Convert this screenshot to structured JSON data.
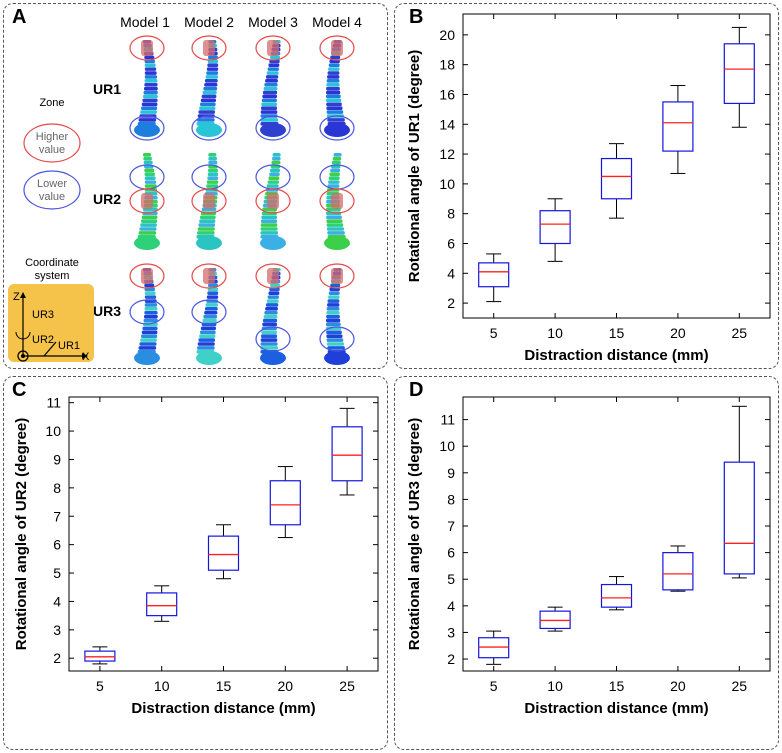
{
  "panel_a": {
    "label": "A",
    "models": [
      "Model 1",
      "Model 2",
      "Model 3",
      "Model 4"
    ],
    "rows": [
      "UR1",
      "UR2",
      "UR3"
    ],
    "zone_title": "Zone",
    "higher_label": "Higher value",
    "lower_label": "Lower value",
    "coord_title": "Coordinate system",
    "axis_z": "Z",
    "axis_x": "X",
    "ur1": "UR1",
    "ur2": "UR2",
    "ur3": "UR3",
    "colors": {
      "higher": "#e84a4a",
      "lower": "#4a56e0",
      "coord_bg": "#f5c24a"
    }
  },
  "chart_data": [
    {
      "label": "B",
      "type": "box",
      "xlabel": "Distraction distance (mm)",
      "ylabel": "Rotational angle of UR1 (degree)",
      "categories": [
        "5",
        "10",
        "15",
        "20",
        "25"
      ],
      "ylim": [
        1,
        21.4
      ],
      "yticks": [
        2,
        4,
        6,
        8,
        10,
        12,
        14,
        16,
        18,
        20
      ],
      "boxes": [
        {
          "min": 2.1,
          "q1": 3.1,
          "median": 4.1,
          "q3": 4.7,
          "max": 5.3
        },
        {
          "min": 4.8,
          "q1": 6.0,
          "median": 7.3,
          "q3": 8.2,
          "max": 9.0
        },
        {
          "min": 7.7,
          "q1": 9.0,
          "median": 10.5,
          "q3": 11.7,
          "max": 12.7
        },
        {
          "min": 10.7,
          "q1": 12.2,
          "median": 14.1,
          "q3": 15.5,
          "max": 16.6
        },
        {
          "min": 13.8,
          "q1": 15.4,
          "median": 17.7,
          "q3": 19.4,
          "max": 20.5
        }
      ]
    },
    {
      "label": "C",
      "type": "box",
      "xlabel": "Distraction distance (mm)",
      "ylabel": "Rotational angle of UR2 (degree)",
      "categories": [
        "5",
        "10",
        "15",
        "20",
        "25"
      ],
      "ylim": [
        1.55,
        11.2
      ],
      "yticks": [
        2,
        3,
        4,
        5,
        6,
        7,
        8,
        9,
        10,
        11
      ],
      "boxes": [
        {
          "min": 1.8,
          "q1": 1.9,
          "median": 2.05,
          "q3": 2.25,
          "max": 2.4
        },
        {
          "min": 3.3,
          "q1": 3.5,
          "median": 3.85,
          "q3": 4.3,
          "max": 4.55
        },
        {
          "min": 4.8,
          "q1": 5.1,
          "median": 5.65,
          "q3": 6.3,
          "max": 6.7
        },
        {
          "min": 6.25,
          "q1": 6.7,
          "median": 7.4,
          "q3": 8.25,
          "max": 8.75
        },
        {
          "min": 7.75,
          "q1": 8.25,
          "median": 9.15,
          "q3": 10.15,
          "max": 10.8
        }
      ]
    },
    {
      "label": "D",
      "type": "box",
      "xlabel": "Distraction distance (mm)",
      "ylabel": "Rotational angle of UR3 (degree)",
      "categories": [
        "5",
        "10",
        "15",
        "20",
        "25"
      ],
      "ylim": [
        1.55,
        11.85
      ],
      "yticks": [
        2,
        3,
        4,
        5,
        6,
        7,
        8,
        9,
        10,
        11
      ],
      "boxes": [
        {
          "min": 1.8,
          "q1": 2.05,
          "median": 2.45,
          "q3": 2.8,
          "max": 3.05
        },
        {
          "min": 3.05,
          "q1": 3.15,
          "median": 3.45,
          "q3": 3.8,
          "max": 3.95
        },
        {
          "min": 3.85,
          "q1": 3.95,
          "median": 4.3,
          "q3": 4.8,
          "max": 5.1
        },
        {
          "min": 4.55,
          "q1": 4.6,
          "median": 5.2,
          "q3": 6.0,
          "max": 6.25
        },
        {
          "min": 5.05,
          "q1": 5.2,
          "median": 6.35,
          "q3": 9.4,
          "max": 11.5
        }
      ]
    }
  ]
}
